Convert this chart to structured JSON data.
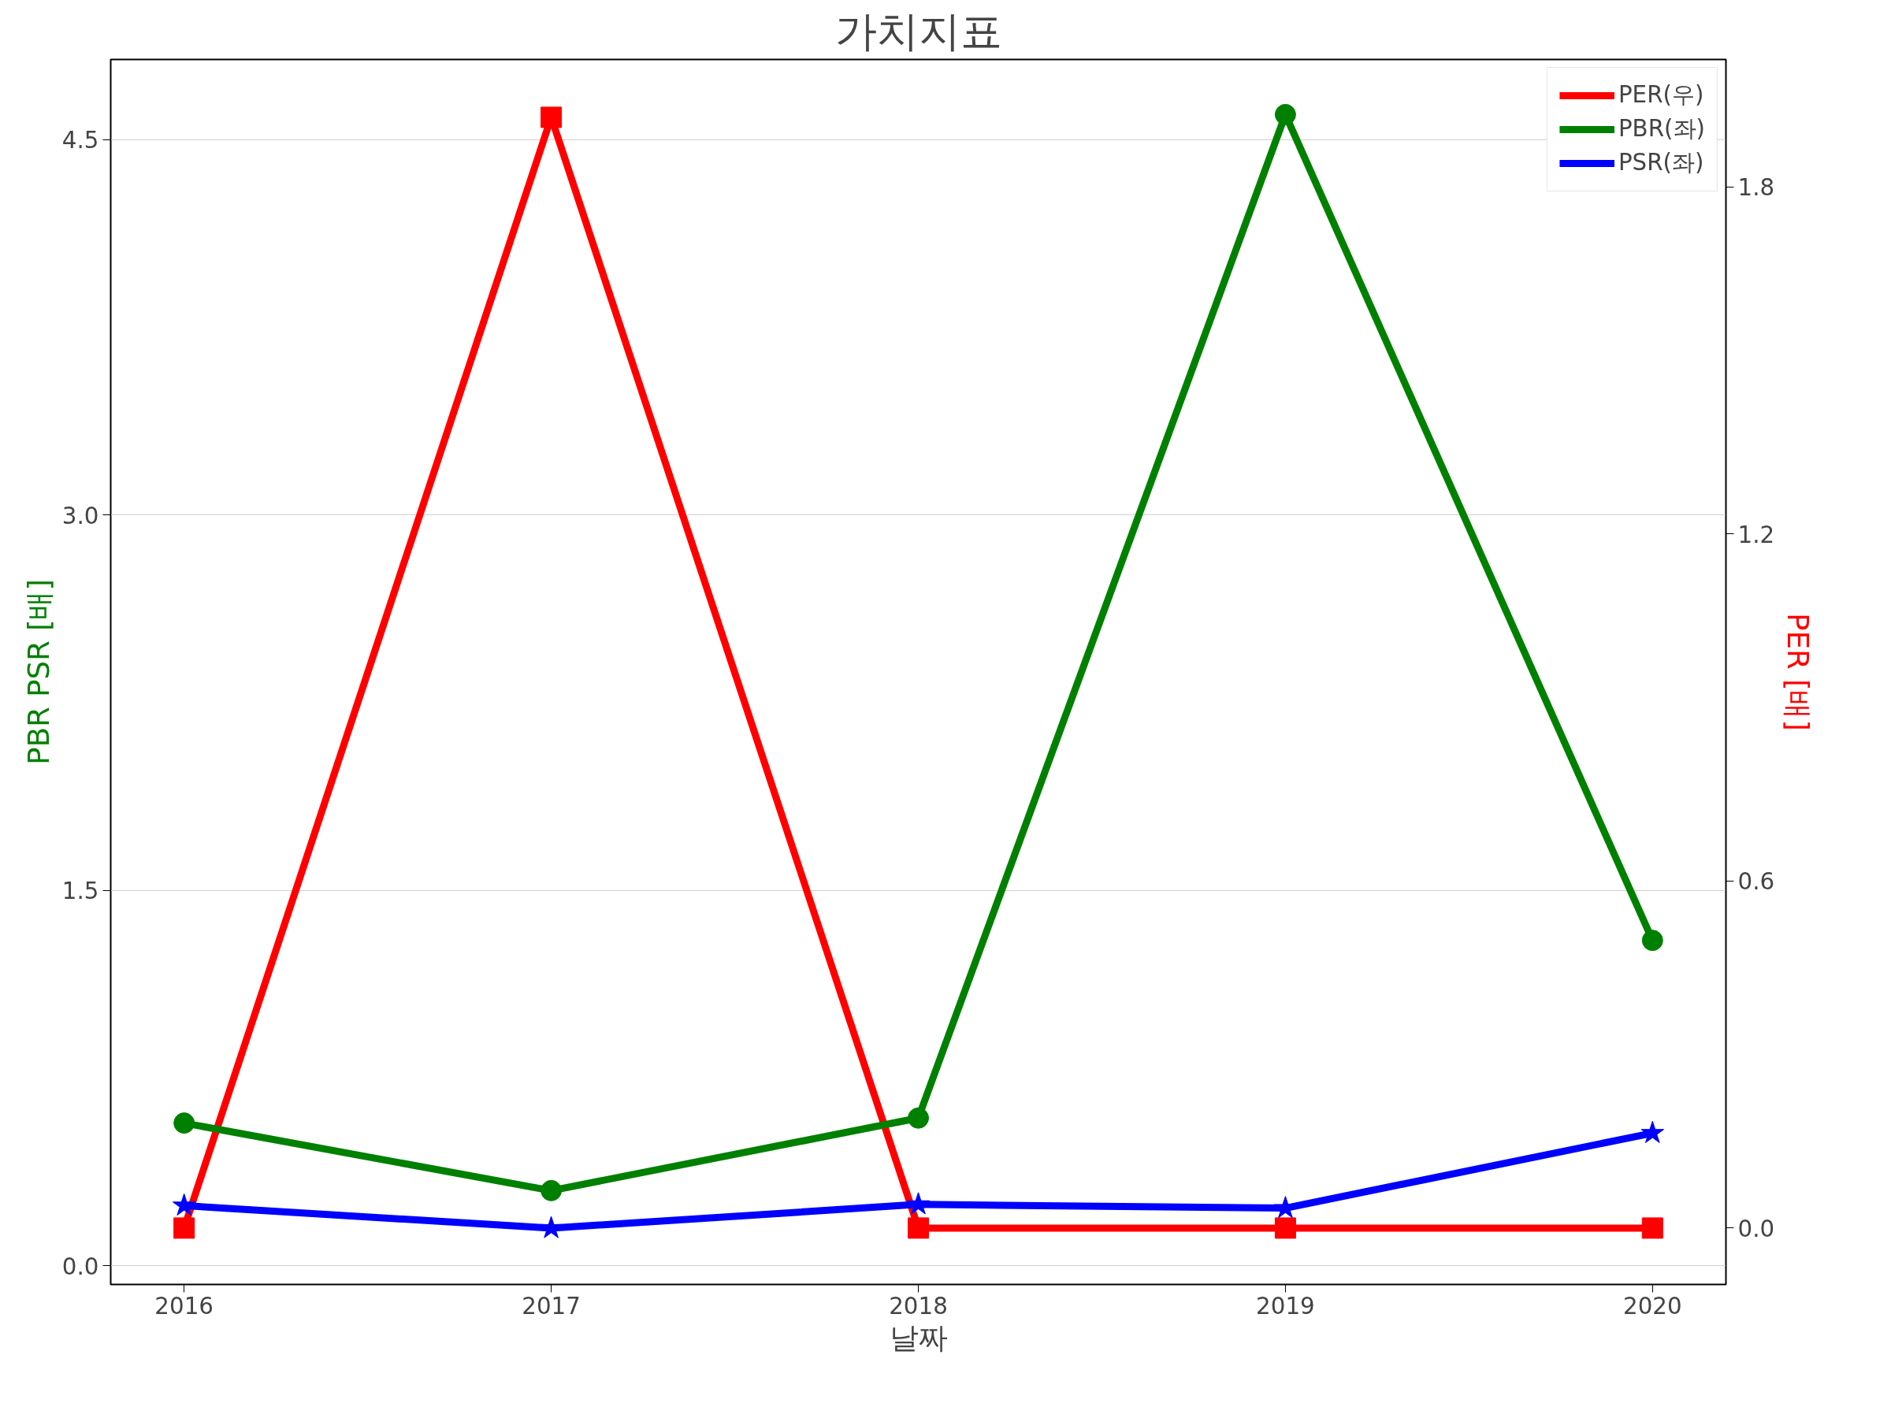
{
  "chart_data": {
    "type": "line",
    "title": "가치지표",
    "xlabel": "날짜",
    "ylabel": "PBR PSR [배]",
    "y2label": "PER [배]",
    "x": [
      2016,
      2017,
      2018,
      2019,
      2020
    ],
    "xlim": [
      2015.8,
      2020.2
    ],
    "xticks": [
      2016,
      2017,
      2018,
      2019,
      2020
    ],
    "ylim": [
      -0.075,
      4.82
    ],
    "yticks": [
      {
        "value": 0,
        "label": "0.0"
      },
      1.5,
      {
        "value": 3,
        "label": "3.0"
      },
      4.5
    ],
    "y2lim": [
      -0.0975,
      2.02
    ],
    "y2ticks": [
      {
        "value": 0,
        "label": "0.0"
      },
      0.6,
      1.2,
      1.8
    ],
    "grid": "y",
    "legend": "top right",
    "line_style": "solid",
    "series": [
      {
        "name": "PER(우)",
        "color": "#ff0000",
        "axis": "y2",
        "marker": "square",
        "values": [
          0.0,
          1.92,
          0.0,
          0.0,
          0.0
        ]
      },
      {
        "name": "PBR(좌)",
        "color": "#008000",
        "axis": "y",
        "marker": "circle",
        "values": [
          0.57,
          0.3,
          0.59,
          4.6,
          1.3
        ]
      },
      {
        "name": "PSR(좌)",
        "color": "#0000ff",
        "axis": "y",
        "marker": "star",
        "values": [
          0.24,
          0.15,
          0.245,
          0.23,
          0.53
        ]
      }
    ]
  }
}
